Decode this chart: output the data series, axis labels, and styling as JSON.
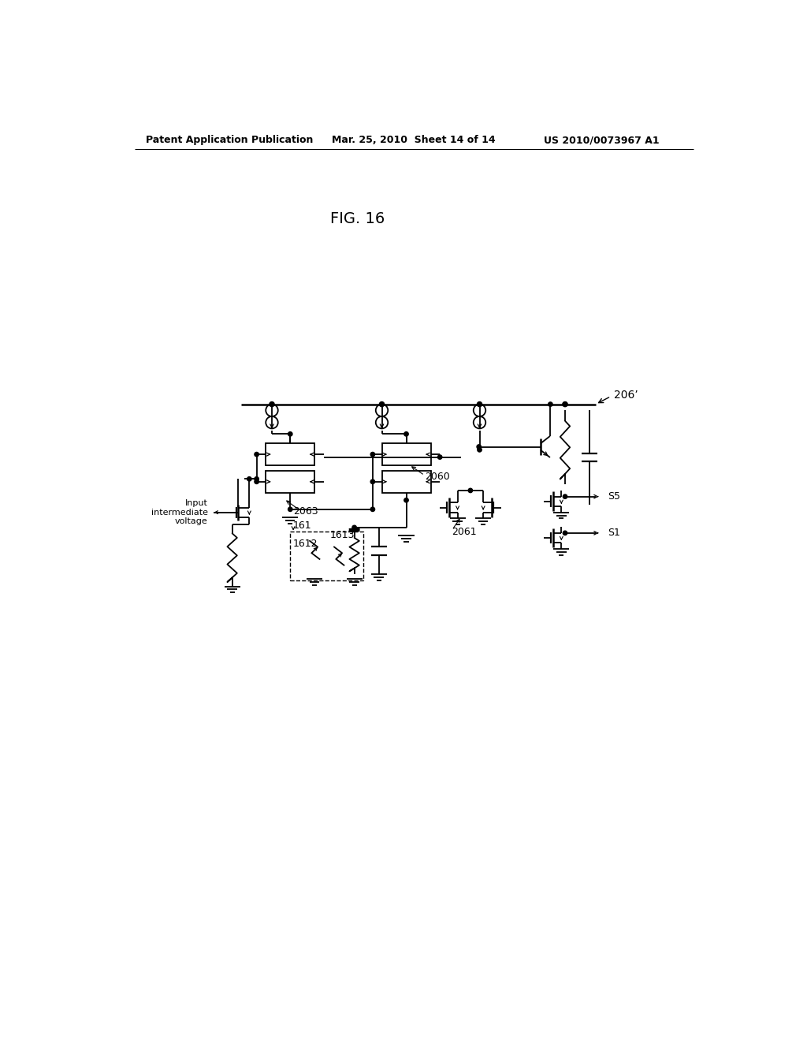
{
  "title": "FIG. 16",
  "header_left": "Patent Application Publication",
  "header_mid": "Mar. 25, 2010  Sheet 14 of 14",
  "header_right": "US 2010/0073967 A1",
  "label_206": "206’",
  "label_2063": "2063",
  "label_2060": "2060",
  "label_2061": "2061",
  "label_161": "161",
  "label_1612": "1612",
  "label_1613": "1613",
  "label_s5": "S5",
  "label_s1": "S1",
  "label_input": "Input\nintermediate\nvoltage",
  "bg_color": "#ffffff",
  "line_color": "#000000",
  "fontsize_header": 9,
  "fontsize_title": 14,
  "fontsize_label": 9
}
